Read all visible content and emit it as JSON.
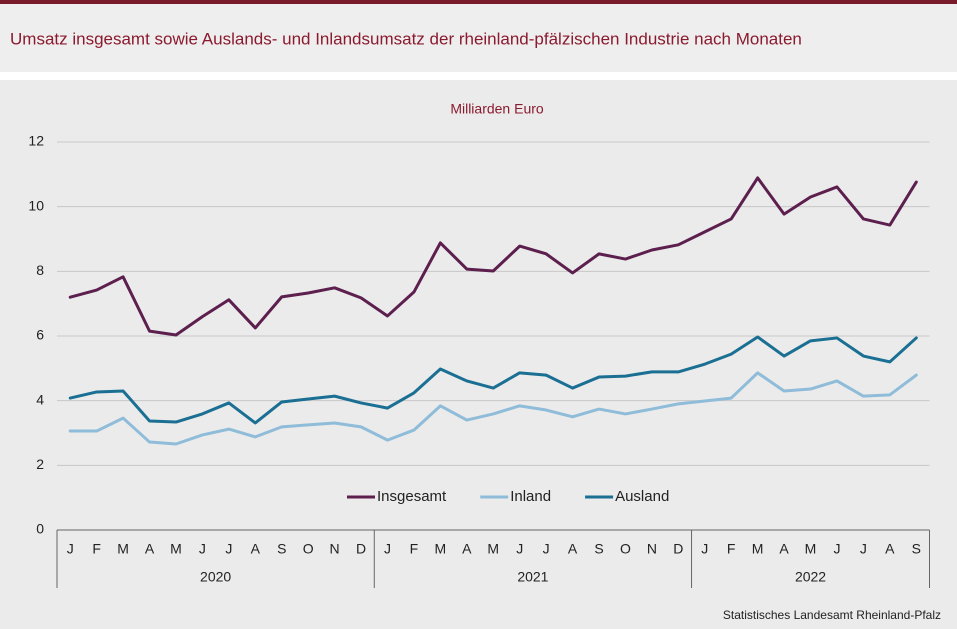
{
  "chart_data": {
    "type": "line",
    "title": "Umsatz insgesamt sowie Auslands- und Inlandsumsatz der rheinland-pfälzischen Industrie nach Monaten",
    "subtitle": "Milliarden Euro",
    "source": "Statistisches Landesamt Rheinland-Pfalz",
    "category_groups": [
      {
        "label": "2020",
        "categories": [
          "J",
          "F",
          "M",
          "A",
          "M",
          "J",
          "J",
          "A",
          "S",
          "O",
          "N",
          "D"
        ]
      },
      {
        "label": "2021",
        "categories": [
          "J",
          "F",
          "M",
          "A",
          "M",
          "J",
          "J",
          "A",
          "S",
          "O",
          "N",
          "D"
        ]
      },
      {
        "label": "2022",
        "categories": [
          "J",
          "F",
          "M",
          "A",
          "M",
          "J",
          "J",
          "A",
          "S"
        ]
      }
    ],
    "series": [
      {
        "name": "Insgesamt",
        "color": "#5c1f4e",
        "values": [
          7.2,
          7.42,
          7.83,
          6.15,
          6.03,
          6.6,
          7.12,
          6.25,
          7.21,
          7.33,
          7.49,
          7.18,
          6.62,
          7.36,
          8.88,
          8.07,
          8.01,
          8.78,
          8.54,
          7.95,
          8.54,
          8.38,
          8.66,
          8.82,
          9.22,
          9.62,
          10.89,
          9.77,
          10.3,
          10.61,
          9.62,
          9.43,
          10.76
        ]
      },
      {
        "name": "Inland",
        "color": "#8fbcd9",
        "values": [
          3.06,
          3.06,
          3.46,
          2.72,
          2.66,
          2.94,
          3.12,
          2.88,
          3.19,
          3.25,
          3.31,
          3.19,
          2.78,
          3.09,
          3.84,
          3.4,
          3.59,
          3.84,
          3.71,
          3.5,
          3.74,
          3.59,
          3.74,
          3.9,
          3.99,
          4.08,
          4.86,
          4.3,
          4.36,
          4.61,
          4.14,
          4.18,
          4.79
        ]
      },
      {
        "name": "Ausland",
        "color": "#1a6f93",
        "values": [
          4.08,
          4.27,
          4.3,
          3.37,
          3.34,
          3.59,
          3.93,
          3.31,
          3.96,
          4.05,
          4.14,
          3.93,
          3.77,
          4.24,
          4.98,
          4.61,
          4.39,
          4.86,
          4.79,
          4.39,
          4.73,
          4.76,
          4.89,
          4.89,
          5.13,
          5.44,
          5.97,
          5.38,
          5.85,
          5.94,
          5.38,
          5.2,
          5.94
        ]
      }
    ],
    "ylim": [
      0,
      12
    ],
    "yticks": [
      0,
      2,
      4,
      6,
      8,
      10,
      12
    ],
    "grid": true
  }
}
